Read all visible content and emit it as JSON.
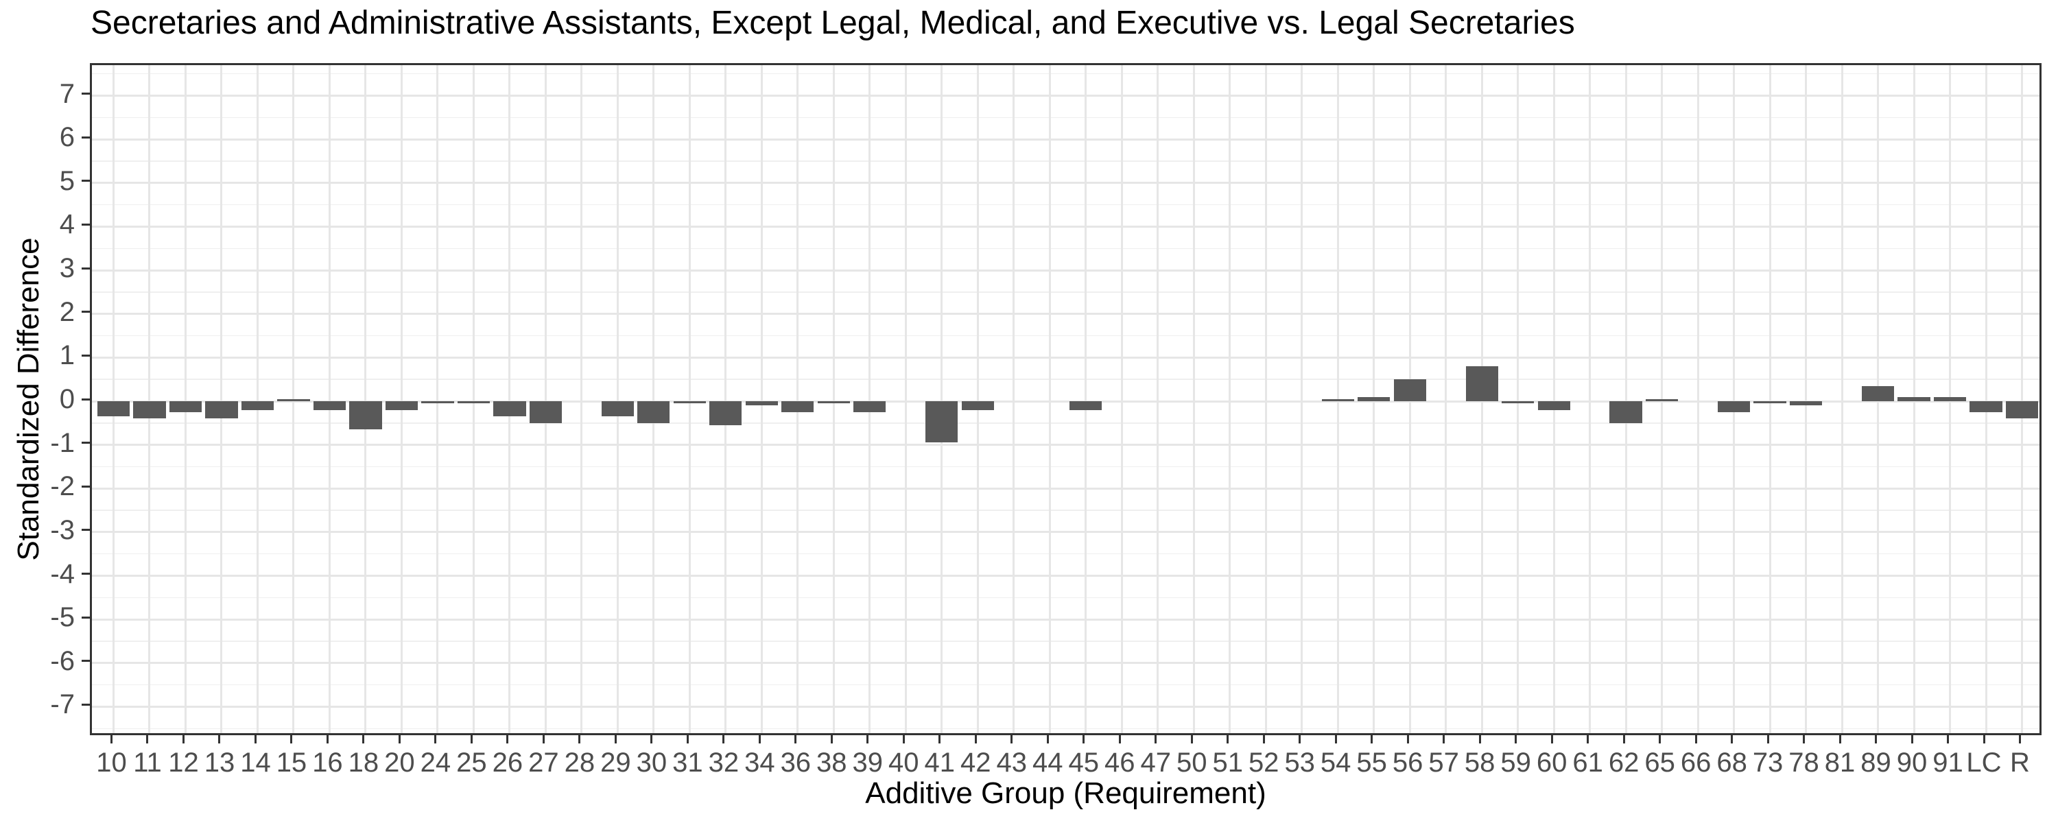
{
  "chart_data": {
    "type": "bar",
    "title": "Secretaries and Administrative Assistants, Except Legal, Medical, and Executive vs. Legal Secretaries",
    "xlabel": "Additive Group (Requirement)",
    "ylabel": "Standardized Difference",
    "categories": [
      "10",
      "11",
      "12",
      "13",
      "14",
      "15",
      "16",
      "18",
      "20",
      "24",
      "25",
      "26",
      "27",
      "28",
      "29",
      "30",
      "31",
      "32",
      "34",
      "36",
      "38",
      "39",
      "40",
      "41",
      "42",
      "43",
      "44",
      "45",
      "46",
      "47",
      "50",
      "51",
      "52",
      "53",
      "54",
      "55",
      "56",
      "57",
      "58",
      "59",
      "60",
      "61",
      "62",
      "65",
      "66",
      "68",
      "73",
      "78",
      "81",
      "89",
      "90",
      "91",
      "LC",
      "R"
    ],
    "values": [
      -0.35,
      -0.4,
      -0.25,
      -0.4,
      -0.2,
      0.05,
      -0.2,
      -0.65,
      -0.2,
      -0.05,
      -0.05,
      -0.35,
      -0.5,
      0,
      -0.35,
      -0.5,
      -0.05,
      -0.55,
      -0.1,
      -0.25,
      -0.05,
      -0.25,
      0,
      -0.95,
      -0.2,
      0,
      0,
      -0.2,
      0,
      0,
      0,
      0,
      0,
      0,
      0.05,
      0.1,
      0.5,
      0,
      0.8,
      -0.05,
      -0.2,
      0,
      -0.5,
      0.05,
      0,
      -0.25,
      -0.05,
      -0.1,
      0,
      0.35,
      0.1,
      0.1,
      -0.25,
      -0.4
    ],
    "yticks": [
      -7,
      -6,
      -5,
      -4,
      -3,
      -2,
      -1,
      0,
      1,
      2,
      3,
      4,
      5,
      6,
      7
    ],
    "ylim": [
      -7.7,
      7.7
    ],
    "grid": "horizontal major at integers, horizontal minor at half steps, vertical major at each category; no legend",
    "legend_position": "none",
    "colors": {
      "bar_fill": "#595959",
      "panel_border": "#333333",
      "major_grid": "#e6e6e6",
      "minor_grid": "#efefef",
      "tick_mark": "#333333",
      "tick_label": "#4d4d4d",
      "title_text": "#000000"
    }
  }
}
